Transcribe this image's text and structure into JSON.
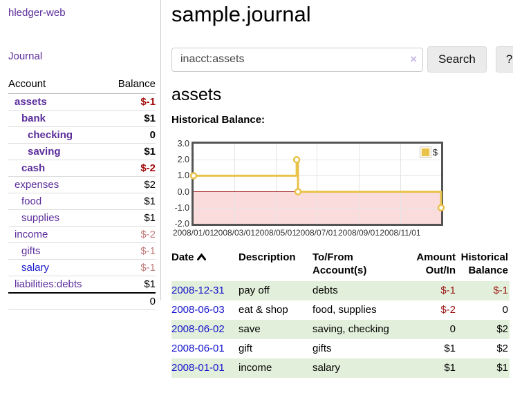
{
  "app": {
    "brand": "hledger-web",
    "nav": {
      "journal": "Journal"
    }
  },
  "sidebar": {
    "account_header": "Account",
    "balance_header": "Balance",
    "accounts": [
      {
        "name": "assets",
        "balance": "$-1"
      },
      {
        "name": "bank",
        "balance": "$1"
      },
      {
        "name": "checking",
        "balance": "0"
      },
      {
        "name": "saving",
        "balance": "$1"
      },
      {
        "name": "cash",
        "balance": "$-2"
      },
      {
        "name": "expenses",
        "balance": "$2"
      },
      {
        "name": "food",
        "balance": "$1"
      },
      {
        "name": "supplies",
        "balance": "$1"
      },
      {
        "name": "income",
        "balance": "$-2"
      },
      {
        "name": "gifts",
        "balance": "$-1"
      },
      {
        "name": "salary",
        "balance": "$-1"
      },
      {
        "name": "liabilities:debts",
        "balance": "$1"
      }
    ],
    "total": "0"
  },
  "main": {
    "title": "sample.journal",
    "search": {
      "value": "inacct:assets",
      "clear_icon": "×",
      "search_button": "Search",
      "help_button": "?"
    },
    "account_heading": "assets",
    "chart_heading": "Historical Balance:"
  },
  "chart_data": {
    "type": "line",
    "style": "step-after",
    "title": "Historical Balance:",
    "series": [
      {
        "name": "$",
        "color": "#e9c24a",
        "points": [
          [
            "2008-01-01",
            1
          ],
          [
            "2008-06-01",
            2
          ],
          [
            "2008-06-03",
            0
          ],
          [
            "2008-12-31",
            -1
          ]
        ]
      }
    ],
    "ylim": [
      -2,
      3
    ],
    "xlim": [
      "2008-01-01",
      "2008-12-31"
    ],
    "yticks": [
      "3.0",
      "2.0",
      "1.0",
      "0.0",
      "-1.0",
      "-2.0"
    ],
    "xticks": [
      "2008/01/01",
      "2008/03/01",
      "2008/05/01",
      "2008/07/01",
      "2008/09/01",
      "2008/11/01"
    ],
    "grid": true,
    "legend_position": "top-right",
    "negative_region_color": "#fbdcdc",
    "zero_line_color": "#a62929"
  },
  "register": {
    "headers": {
      "date": "Date",
      "sort_direction": "ascending",
      "description": "Description",
      "tofrom": "To/From Account(s)",
      "amount": "Amount Out/In",
      "balance": "Historical Balance"
    },
    "rows": [
      {
        "date": "2008-12-31",
        "description": "pay off",
        "tofrom": "debts",
        "amount": "$-1",
        "balance": "$-1"
      },
      {
        "date": "2008-06-03",
        "description": "eat & shop",
        "tofrom": "food, supplies",
        "amount": "$-2",
        "balance": "0"
      },
      {
        "date": "2008-06-02",
        "description": "save",
        "tofrom": "saving, checking",
        "amount": "0",
        "balance": "$2"
      },
      {
        "date": "2008-06-01",
        "description": "gift",
        "tofrom": "gifts",
        "amount": "$1",
        "balance": "$2"
      },
      {
        "date": "2008-01-01",
        "description": "income",
        "tofrom": "salary",
        "amount": "$1",
        "balance": "$1"
      }
    ]
  },
  "theme": {
    "link_purple": "#5b2d9b",
    "link_blue": "#1414cc",
    "negative_strong": "#a40a0a",
    "negative_faded": "#c07b7b",
    "negative_cell": "#991414",
    "row_green": "#e2efda",
    "chart_gold": "#e9c24a"
  }
}
